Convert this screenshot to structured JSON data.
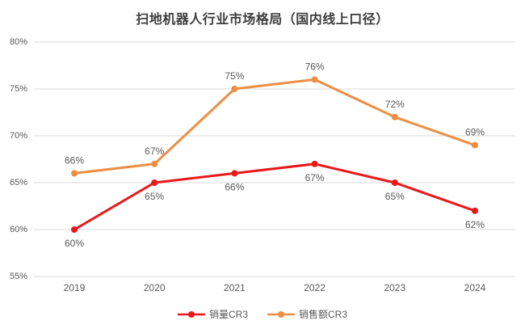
{
  "chart_data": {
    "type": "line",
    "title": "扫地机器人行业市场格局（国内线上口径）",
    "categories": [
      "2019",
      "2020",
      "2021",
      "2022",
      "2023",
      "2024"
    ],
    "series": [
      {
        "name": "销量CR3",
        "color": "#e8191a",
        "values": [
          60,
          65,
          66,
          67,
          65,
          62
        ],
        "label_position": "below"
      },
      {
        "name": "销售额CR3",
        "color": "#ed8e44",
        "values": [
          66,
          67,
          75,
          76,
          72,
          69
        ],
        "label_position": "above"
      }
    ],
    "xlabel": "",
    "ylabel": "",
    "ylim": [
      55,
      80
    ],
    "ytick_step": 5,
    "yticks": [
      "55%",
      "60%",
      "65%",
      "70%",
      "75%",
      "80%"
    ],
    "value_suffix": "%",
    "grid": "horizontal",
    "legend_position": "bottom",
    "axis_color": "#595959",
    "label_color": "#595959",
    "grid_color": "#d9d9d9"
  }
}
